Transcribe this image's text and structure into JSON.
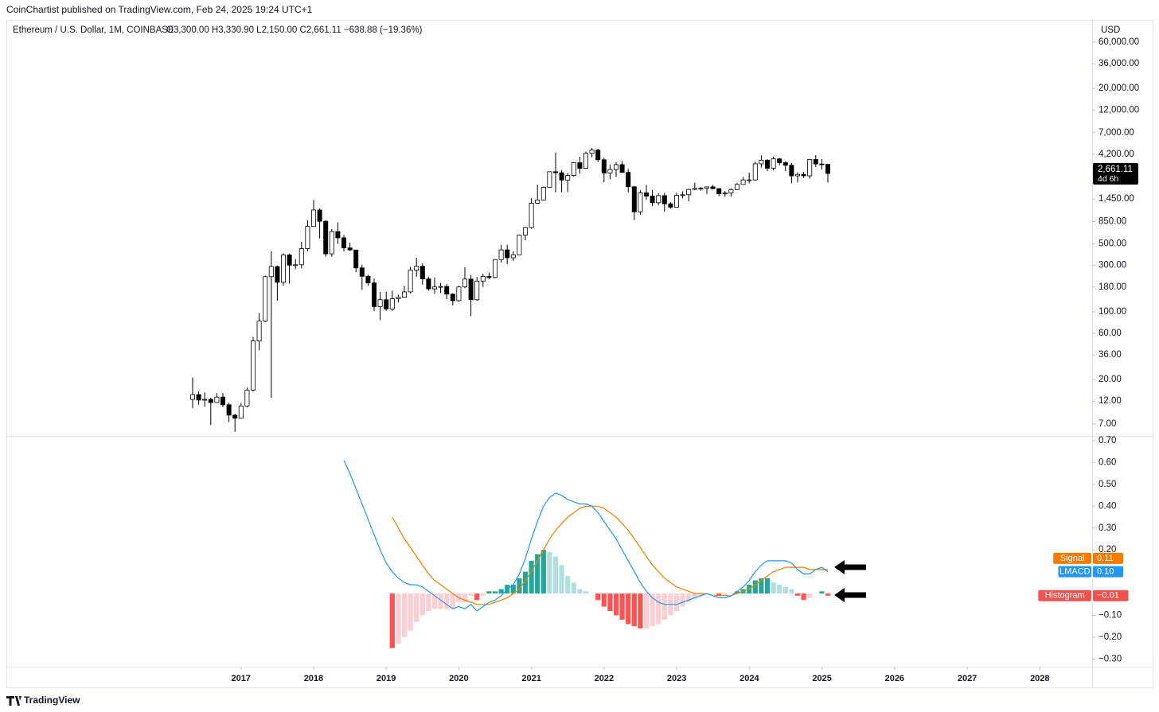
{
  "publisher": "CoinChartist published on TradingView.com, Feb 24, 2025 19:24 UTC+1",
  "brand": "TradingView",
  "chart_data": [
    {
      "type": "candlestick",
      "title": "Ethereum / U.S. Dollar, 1M, COINBASE",
      "subtitle": "O3,300.00 H3,330.90 L2,150.00 C2,661.11 −638.88 (−19.36%)",
      "currency": "USD",
      "log_scale": true,
      "up_color": "#ffffff",
      "down_color": "#000000",
      "border_color": "#000000",
      "xlim": [
        2013.77,
        2028.72
      ],
      "xticks": [
        2017,
        2018,
        2019,
        2020,
        2021,
        2022,
        2023,
        2024,
        2025,
        2026,
        2027,
        2028
      ],
      "ylim": [
        5.25,
        101700
      ],
      "yticks": [
        {
          "value": 60000,
          "label": "60,000.00"
        },
        {
          "value": 36000,
          "label": "36,000.00"
        },
        {
          "value": 20000,
          "label": "20,000.00"
        },
        {
          "value": 12000,
          "label": "12,000.00"
        },
        {
          "value": 7000,
          "label": "7,000.00"
        },
        {
          "value": 4200,
          "label": "4,200.00"
        },
        {
          "value": 1450,
          "label": "1,450.00"
        },
        {
          "value": 850,
          "label": "850.00"
        },
        {
          "value": 500,
          "label": "500.00"
        },
        {
          "value": 300,
          "label": "300.00"
        },
        {
          "value": 180,
          "label": "180.00"
        },
        {
          "value": 100,
          "label": "100.00"
        },
        {
          "value": 60,
          "label": "60.00"
        },
        {
          "value": 36,
          "label": "36.00"
        },
        {
          "value": 20,
          "label": "20.00"
        },
        {
          "value": 12,
          "label": "12.00"
        },
        {
          "value": 7,
          "label": "7.00"
        }
      ],
      "last_price": {
        "value": 2661.11,
        "label": "2,661.11"
      },
      "countdown": "4d 6h",
      "open": [
        12.5,
        14.0,
        12.3,
        12.5,
        11.6,
        13.2,
        11.0,
        8.6,
        8.0,
        10.7,
        15.6,
        50,
        80,
        230,
        292,
        201,
        385,
        302,
        305,
        447,
        757,
        1118,
        855,
        395,
        670,
        578,
        455,
        433,
        283,
        232,
        198,
        113,
        133,
        107,
        136,
        141,
        160,
        268,
        294,
        218,
        172,
        180,
        182,
        152,
        130,
        180,
        217,
        133,
        207,
        231,
        225,
        345,
        434,
        360,
        386,
        615,
        737,
        1314,
        1418,
        1918,
        2773,
        2706,
        2275,
        2536,
        3433,
        3000,
        4288,
        4630,
        3683,
        2688,
        2920,
        3280,
        2727,
        1940,
        1070,
        1680,
        1553,
        1328,
        1572,
        1295,
        1196,
        1585,
        1605,
        1822,
        1870,
        1874,
        1934,
        1857,
        1645,
        1671,
        1815,
        2050,
        2282,
        2283,
        3340,
        3647,
        3015,
        3760,
        3433,
        3232,
        2513,
        2602,
        2518,
        3705,
        3332,
        3300
      ],
      "high": [
        21,
        15,
        14.8,
        13,
        14.5,
        14.5,
        11.5,
        8.9,
        11.5,
        16.5,
        55,
        97,
        235,
        420,
        300,
        400,
        395,
        350,
        525,
        880,
        1420,
        1160,
        880,
        710,
        835,
        620,
        515,
        435,
        305,
        240,
        220,
        160,
        160,
        165,
        150,
        185,
        290,
        360,
        315,
        230,
        225,
        198,
        193,
        155,
        185,
        288,
        240,
        228,
        246,
        253,
        347,
        491,
        490,
        420,
        625,
        750,
        1475,
        2040,
        1945,
        2795,
        4380,
        2890,
        2700,
        3470,
        3955,
        4460,
        4870,
        4780,
        3860,
        3265,
        3480,
        3580,
        2960,
        1980,
        1785,
        2030,
        1790,
        1660,
        1680,
        1350,
        1680,
        1740,
        1850,
        2140,
        1930,
        1950,
        2030,
        1875,
        1750,
        1860,
        2130,
        2450,
        2720,
        3520,
        4090,
        3730,
        3975,
        3830,
        3560,
        3400,
        2730,
        2770,
        3740,
        4110,
        3745,
        3330.9
      ],
      "low": [
        10.2,
        11.0,
        10.5,
        6.8,
        11.5,
        10.4,
        7.3,
        5.8,
        7.9,
        10.3,
        15.1,
        40,
        78,
        13,
        130,
        185,
        195,
        275,
        280,
        420,
        750,
        570,
        370,
        370,
        500,
        420,
        424,
        255,
        168,
        186,
        102,
        82,
        102,
        102,
        125,
        140,
        155,
        230,
        190,
        165,
        153,
        156,
        135,
        116,
        127,
        175,
        90,
        130,
        180,
        215,
        222,
        320,
        309,
        335,
        385,
        545,
        715,
        1290,
        1400,
        1900,
        1700,
        1700,
        1720,
        2460,
        2650,
        2970,
        3900,
        3480,
        2160,
        2320,
        2450,
        2700,
        1700,
        880,
        1000,
        1420,
        1225,
        1255,
        1070,
        1160,
        1190,
        1465,
        1375,
        1780,
        1760,
        1625,
        1830,
        1550,
        1530,
        1540,
        1800,
        2040,
        2100,
        2240,
        3060,
        2810,
        2860,
        3240,
        2810,
        2110,
        2150,
        2390,
        2360,
        3100,
        2920,
        2150
      ],
      "close": [
        14.0,
        12.3,
        12.5,
        11.6,
        13.2,
        11.0,
        8.6,
        8.0,
        10.7,
        15.6,
        50,
        80,
        230,
        292,
        201,
        385,
        302,
        305,
        447,
        757,
        1118,
        855,
        395,
        670,
        578,
        455,
        433,
        283,
        232,
        198,
        113,
        133,
        107,
        136,
        141,
        160,
        268,
        294,
        218,
        172,
        180,
        182,
        152,
        130,
        180,
        217,
        133,
        207,
        231,
        225,
        345,
        434,
        360,
        386,
        615,
        737,
        1314,
        1418,
        1918,
        2773,
        2706,
        2275,
        2536,
        3433,
        3000,
        4288,
        4630,
        3683,
        2688,
        2920,
        3280,
        2727,
        1940,
        1070,
        1680,
        1553,
        1328,
        1572,
        1295,
        1196,
        1585,
        1605,
        1822,
        1870,
        1874,
        1934,
        1857,
        1645,
        1671,
        1815,
        2050,
        2282,
        2283,
        3340,
        3647,
        3015,
        3760,
        3433,
        3232,
        2513,
        2602,
        2518,
        3705,
        3332,
        3300,
        2661.11
      ]
    },
    {
      "type": "macd",
      "ylim": [
        -0.335,
        0.718
      ],
      "yticks": [
        {
          "value": 0.7,
          "label": "0.70"
        },
        {
          "value": 0.6,
          "label": "0.60"
        },
        {
          "value": 0.5,
          "label": "0.50"
        },
        {
          "value": 0.4,
          "label": "0.40"
        },
        {
          "value": 0.3,
          "label": "0.30"
        },
        {
          "value": 0.2,
          "label": "0.20"
        },
        {
          "value": -0.1,
          "label": "−0.10"
        },
        {
          "value": -0.2,
          "label": "−0.20"
        },
        {
          "value": -0.3,
          "label": "−0.30"
        }
      ],
      "series": [
        {
          "name": "Histogram",
          "type": "bar",
          "color": "#ef5350",
          "colors": {
            "grow_above": "#26a69a",
            "fall_above": "#b2dfdb",
            "grow_below": "#ffcdd2",
            "fall_below": "#ff5252"
          },
          "badge": {
            "value": -0.01,
            "label": "−0.01"
          },
          "values": [
            null,
            null,
            null,
            null,
            null,
            null,
            null,
            null,
            null,
            null,
            null,
            null,
            null,
            null,
            null,
            null,
            null,
            null,
            null,
            null,
            null,
            null,
            null,
            null,
            null,
            null,
            null,
            null,
            null,
            null,
            null,
            null,
            null,
            -0.25,
            -0.23,
            -0.2,
            -0.17,
            -0.13,
            -0.1,
            -0.08,
            -0.07,
            -0.07,
            -0.07,
            -0.07,
            -0.04,
            -0.04,
            -0.01,
            -0.03,
            -0.01,
            0.01,
            0.01,
            0.02,
            0.04,
            0.04,
            0.07,
            0.1,
            0.15,
            0.18,
            0.2,
            0.19,
            0.17,
            0.13,
            0.08,
            0.05,
            0.02,
            0.01,
            0,
            -0.03,
            -0.06,
            -0.08,
            -0.1,
            -0.12,
            -0.14,
            -0.15,
            -0.16,
            -0.16,
            -0.15,
            -0.14,
            -0.12,
            -0.1,
            -0.08,
            -0.06,
            -0.04,
            -0.02,
            -0.01,
            0,
            0,
            -0.01,
            -0.01,
            0,
            0.01,
            0.02,
            0.04,
            0.06,
            0.07,
            0.07,
            0.05,
            0.04,
            0.03,
            0.02,
            -0.01,
            -0.03,
            -0.02,
            0,
            0.01,
            -0.01
          ]
        },
        {
          "name": "Signal",
          "type": "line",
          "color": "#f57c00",
          "badge": {
            "value": 0.11,
            "label": "0.11"
          },
          "values": [
            null,
            null,
            null,
            null,
            null,
            null,
            null,
            null,
            null,
            null,
            null,
            null,
            null,
            null,
            null,
            null,
            null,
            null,
            null,
            null,
            null,
            null,
            null,
            null,
            null,
            null,
            null,
            null,
            null,
            null,
            null,
            null,
            null,
            0.35,
            0.3,
            0.25,
            0.21,
            0.17,
            0.13,
            0.09,
            0.06,
            0.04,
            0.02,
            0,
            -0.02,
            -0.03,
            -0.04,
            -0.05,
            -0.05,
            -0.05,
            -0.04,
            -0.03,
            -0.02,
            0,
            0.02,
            0.06,
            0.1,
            0.15,
            0.2,
            0.25,
            0.29,
            0.32,
            0.35,
            0.37,
            0.39,
            0.4,
            0.4,
            0.4,
            0.39,
            0.37,
            0.35,
            0.32,
            0.29,
            0.25,
            0.21,
            0.17,
            0.13,
            0.1,
            0.07,
            0.05,
            0.03,
            0.02,
            0.01,
            0,
            0,
            0,
            -0.01,
            -0.01,
            -0.01,
            -0.01,
            0,
            0.01,
            0.02,
            0.04,
            0.06,
            0.08,
            0.1,
            0.11,
            0.12,
            0.12,
            0.12,
            0.12,
            0.11,
            0.11,
            0.11,
            0.11
          ]
        },
        {
          "name": "LMACD",
          "type": "line",
          "color": "#2196f3",
          "badge": {
            "value": 0.1,
            "label": "0.10"
          },
          "values": [
            null,
            null,
            null,
            null,
            null,
            null,
            null,
            null,
            null,
            null,
            null,
            null,
            null,
            null,
            null,
            null,
            null,
            null,
            null,
            null,
            null,
            null,
            null,
            null,
            null,
            0.61,
            0.55,
            0.48,
            0.41,
            0.34,
            0.27,
            0.2,
            0.14,
            0.1,
            0.07,
            0.05,
            0.04,
            0.04,
            0.03,
            0.01,
            -0.01,
            -0.03,
            -0.05,
            -0.07,
            -0.06,
            -0.07,
            -0.05,
            -0.08,
            -0.06,
            -0.04,
            -0.03,
            -0.01,
            0.02,
            0.04,
            0.09,
            0.16,
            0.25,
            0.33,
            0.4,
            0.44,
            0.46,
            0.45,
            0.43,
            0.42,
            0.41,
            0.41,
            0.4,
            0.37,
            0.33,
            0.29,
            0.25,
            0.2,
            0.15,
            0.1,
            0.05,
            0.01,
            -0.02,
            -0.04,
            -0.05,
            -0.05,
            -0.05,
            -0.04,
            -0.03,
            -0.02,
            -0.01,
            0,
            -0.01,
            -0.02,
            -0.02,
            -0.01,
            0.01,
            0.03,
            0.06,
            0.1,
            0.13,
            0.15,
            0.15,
            0.15,
            0.15,
            0.14,
            0.11,
            0.09,
            0.09,
            0.11,
            0.12,
            0.1
          ]
        }
      ]
    }
  ]
}
